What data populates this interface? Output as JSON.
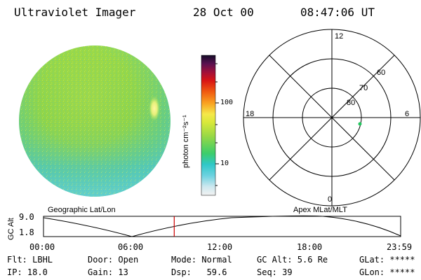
{
  "header": {
    "instrument": "Ultraviolet Imager",
    "date": "28 Oct 00",
    "time": "08:47:06 UT"
  },
  "colorbar": {
    "label": "photon cm⁻²s⁻¹",
    "ticks": [
      "100",
      "10"
    ]
  },
  "polar_plot": {
    "lat_labels": [
      "80",
      "70",
      "60"
    ],
    "mlt_labels": [
      "12",
      "18",
      "6",
      "0"
    ]
  },
  "timeline": {
    "left_title": "Geographic Lat/Lon",
    "right_title": "Apex MLat/MLT",
    "y_axis_label": "GC Alt",
    "y_top": "9.0",
    "y_bottom": "1.8",
    "time_ticks": [
      "00:00",
      "06:00",
      "12:00",
      "18:00",
      "23:59"
    ],
    "current_time_hours": 8.785
  },
  "status": {
    "filter": "Flt: LBHL",
    "door": "Door: Open",
    "mode": "Mode: Normal",
    "gc_alt": "GC Alt: 5.6 Re",
    "glat": "GLat: *****",
    "ip": "IP: 18.0",
    "gain": "Gain: 13",
    "dsp": "Dsp:   59.6",
    "seq": "Seq: 39",
    "glon": "GLon: *****"
  },
  "colors": {
    "marker": "#cc0000",
    "spot": "#22c55e"
  }
}
